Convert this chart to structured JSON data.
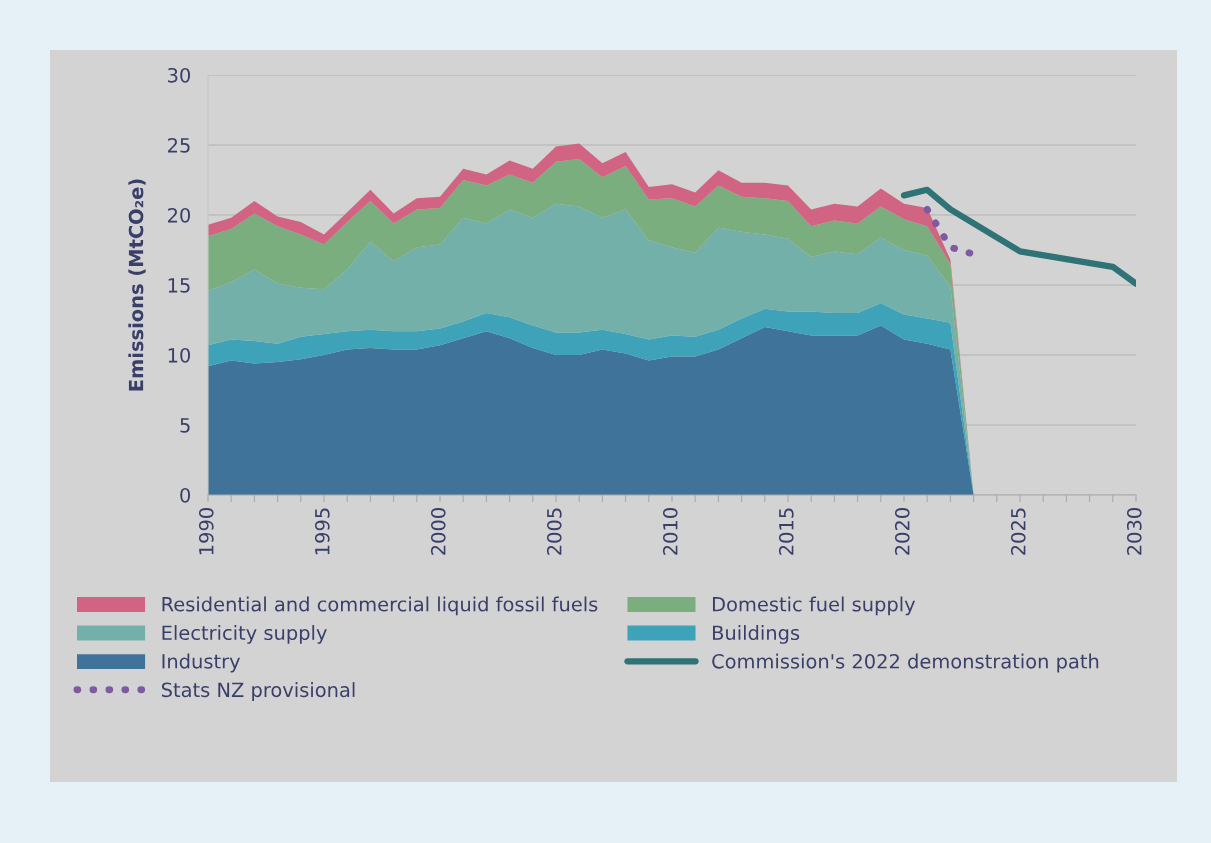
{
  "chart_data": {
    "type": "area",
    "stacked": true,
    "ylabel": "Emissions (MtCO₂e)",
    "x": [
      1990,
      1991,
      1992,
      1993,
      1994,
      1995,
      1996,
      1997,
      1998,
      1999,
      2000,
      2001,
      2002,
      2003,
      2004,
      2005,
      2006,
      2007,
      2008,
      2009,
      2010,
      2011,
      2012,
      2013,
      2014,
      2015,
      2016,
      2017,
      2018,
      2019,
      2020,
      2021,
      2022,
      2023
    ],
    "xlim": [
      1990,
      2030
    ],
    "xticks": [
      1990,
      {
        "value": 1991,
        "label": null
      },
      {
        "value": 1992,
        "label": null
      },
      {
        "value": 1993,
        "label": null
      },
      {
        "value": 1994,
        "label": null
      },
      1995,
      {
        "value": 1996,
        "label": null
      },
      {
        "value": 1997,
        "label": null
      },
      {
        "value": 1998,
        "label": null
      },
      {
        "value": 1999,
        "label": null
      },
      2000,
      {
        "value": 2001,
        "label": null
      },
      {
        "value": 2002,
        "label": null
      },
      {
        "value": 2003,
        "label": null
      },
      {
        "value": 2004,
        "label": null
      },
      2005,
      {
        "value": 2006,
        "label": null
      },
      {
        "value": 2007,
        "label": null
      },
      {
        "value": 2008,
        "label": null
      },
      {
        "value": 2009,
        "label": null
      },
      2010,
      {
        "value": 2011,
        "label": null
      },
      {
        "value": 2012,
        "label": null
      },
      {
        "value": 2013,
        "label": null
      },
      {
        "value": 2014,
        "label": null
      },
      2015,
      {
        "value": 2016,
        "label": null
      },
      {
        "value": 2017,
        "label": null
      },
      {
        "value": 2018,
        "label": null
      },
      {
        "value": 2019,
        "label": null
      },
      2020,
      {
        "value": 2021,
        "label": null
      },
      {
        "value": 2022,
        "label": null
      },
      {
        "value": 2023,
        "label": null
      },
      {
        "value": 2024,
        "label": null
      },
      2025,
      {
        "value": 2026,
        "label": null
      },
      {
        "value": 2027,
        "label": null
      },
      {
        "value": 2028,
        "label": null
      },
      {
        "value": 2029,
        "label": null
      },
      2030
    ],
    "ylim": [
      0,
      30
    ],
    "yticks": [
      0,
      5,
      10,
      15,
      20,
      25,
      30
    ],
    "grid": "y",
    "legend": "bottom",
    "series": [
      {
        "name": "Industry",
        "color": "#3f7399",
        "values": [
          9.2,
          9.6,
          9.4,
          9.5,
          9.7,
          10.0,
          10.4,
          10.5,
          10.4,
          10.4,
          10.7,
          11.2,
          11.7,
          11.2,
          10.5,
          10.0,
          10.0,
          10.4,
          10.1,
          9.6,
          9.9,
          9.9,
          10.4,
          11.2,
          12.0,
          11.7,
          11.4,
          11.4,
          11.4,
          12.1,
          11.1,
          10.8,
          10.4,
          0
        ]
      },
      {
        "name": "Buildings",
        "color": "#3ea3b8",
        "values": [
          1.5,
          1.5,
          1.6,
          1.3,
          1.6,
          1.5,
          1.3,
          1.3,
          1.3,
          1.3,
          1.2,
          1.2,
          1.3,
          1.5,
          1.6,
          1.6,
          1.6,
          1.4,
          1.4,
          1.5,
          1.5,
          1.4,
          1.4,
          1.4,
          1.3,
          1.4,
          1.7,
          1.6,
          1.6,
          1.6,
          1.8,
          1.8,
          1.9,
          0
        ]
      },
      {
        "name": "Electricity supply",
        "color": "#74b0aa",
        "values": [
          3.9,
          4.1,
          5.1,
          4.3,
          3.5,
          3.2,
          4.4,
          6.3,
          5.0,
          6.0,
          6.0,
          7.4,
          6.4,
          7.7,
          7.7,
          9.2,
          9.0,
          8.0,
          8.9,
          7.1,
          6.3,
          6.0,
          7.3,
          6.2,
          5.3,
          5.2,
          3.9,
          4.4,
          4.2,
          4.7,
          4.6,
          4.5,
          2.6,
          0
        ]
      },
      {
        "name": "Domestic fuel supply",
        "color": "#7aae7e",
        "values": [
          3.9,
          3.8,
          4.0,
          4.1,
          3.8,
          3.2,
          3.4,
          2.9,
          2.7,
          2.7,
          2.6,
          2.7,
          2.7,
          2.5,
          2.5,
          3.0,
          3.4,
          2.9,
          3.1,
          2.9,
          3.5,
          3.3,
          3.0,
          2.5,
          2.6,
          2.7,
          2.2,
          2.2,
          2.2,
          2.2,
          2.2,
          2.1,
          1.6,
          0
        ]
      },
      {
        "name": "Residential and commercial liquid fossil fuels",
        "color": "#d06482",
        "values": [
          0.8,
          0.8,
          0.9,
          0.7,
          0.9,
          0.7,
          0.7,
          0.8,
          0.7,
          0.8,
          0.8,
          0.8,
          0.8,
          1.0,
          1.0,
          1.1,
          1.1,
          1.0,
          1.0,
          0.9,
          1.0,
          1.0,
          1.1,
          1.0,
          1.1,
          1.1,
          1.2,
          1.2,
          1.2,
          1.3,
          1.1,
          1.3,
          0.3,
          0
        ]
      },
      {
        "name": "Commission's 2022 demonstration path",
        "type": "line",
        "color": "#2f7377",
        "x": [
          2020,
          2021,
          2022,
          2025,
          2029,
          2030
        ],
        "values": [
          21.4,
          21.8,
          20.4,
          17.4,
          16.3,
          15.1
        ]
      },
      {
        "name": "Stats NZ provisional",
        "type": "line",
        "line_style": "dotted",
        "color": "#7e5aa0",
        "x": [
          2021,
          2022,
          2023
        ],
        "values": [
          20.4,
          17.7,
          17.2
        ]
      }
    ]
  }
}
